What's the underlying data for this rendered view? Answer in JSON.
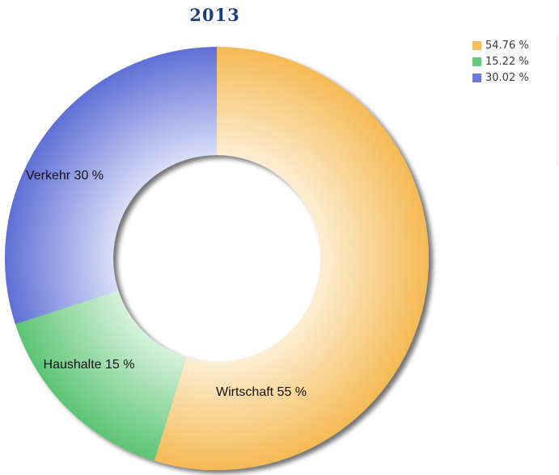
{
  "chart_data": {
    "type": "pie",
    "variant": "donut",
    "title": "2013",
    "slices": [
      {
        "label": "Wirtschaft 55 %",
        "value": 54.76,
        "legend": "54.76 %",
        "color": "#f4bd5d"
      },
      {
        "label": "Haushalte 15 %",
        "value": 15.22,
        "legend": "15.22 %",
        "color": "#66c97e"
      },
      {
        "label": "Verkehr 30 %",
        "value": 30.02,
        "legend": "30.02 %",
        "color": "#6b7bdc"
      }
    ],
    "legend_position": "top-right"
  }
}
